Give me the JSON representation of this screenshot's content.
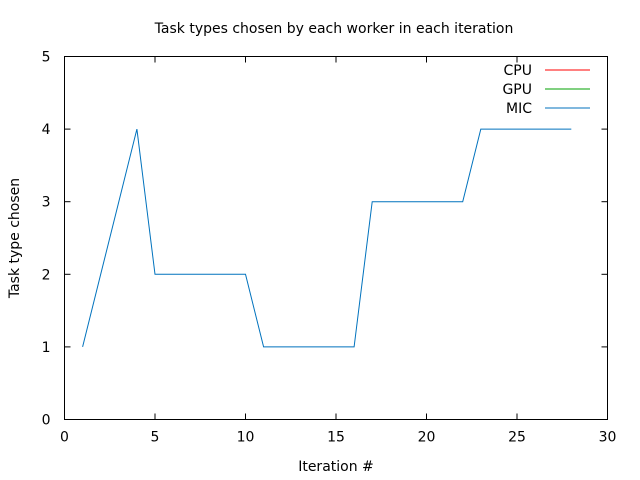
{
  "chart_data": {
    "type": "line",
    "title": "Task types chosen by each worker in each iteration",
    "xlabel": "Iteration #",
    "ylabel": "Task type chosen",
    "xlim": [
      0,
      30
    ],
    "ylim": [
      0,
      5
    ],
    "xticks": [
      0,
      5,
      10,
      15,
      20,
      25,
      30
    ],
    "yticks": [
      0,
      1,
      2,
      3,
      4,
      5
    ],
    "grid": false,
    "legend_position": "top-right",
    "series": [
      {
        "name": "CPU",
        "color": "#ff0000",
        "x": [],
        "y": []
      },
      {
        "name": "GPU",
        "color": "#00a000",
        "x": [],
        "y": []
      },
      {
        "name": "MIC",
        "color": "#0072bd",
        "x": [
          1,
          2,
          3,
          4,
          5,
          6,
          7,
          8,
          9,
          10,
          11,
          12,
          13,
          14,
          15,
          16,
          17,
          18,
          19,
          20,
          21,
          22,
          23,
          24,
          25,
          26,
          27,
          28
        ],
        "y": [
          1,
          2,
          3,
          4,
          2,
          2,
          2,
          2,
          2,
          2,
          1,
          1,
          1,
          1,
          1,
          1,
          3,
          3,
          3,
          3,
          3,
          3,
          4,
          4,
          4,
          4,
          4,
          4
        ]
      }
    ]
  }
}
